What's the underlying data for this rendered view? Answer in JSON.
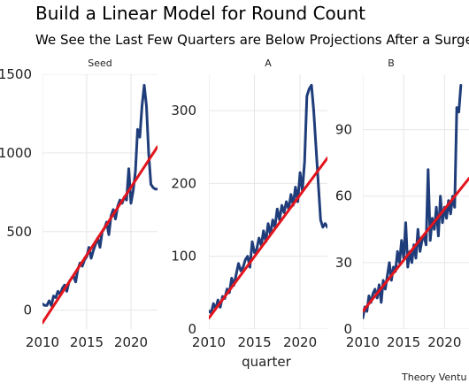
{
  "chart_data": {
    "type": "line",
    "title": "Build a Linear Model for Round Count",
    "subtitle": "We See the Last Few Quarters are Below Projections After a Surge",
    "xlabel": "quarter",
    "caption": "Theory Ventu",
    "colors": {
      "series": "#1f3d7a",
      "trend": "#e3141c",
      "grid": "#e6e6e6"
    },
    "grid": true,
    "facets": [
      {
        "label": "Seed",
        "xlim": [
          2010,
          2023
        ],
        "ylim": [
          -120,
          1500
        ],
        "xticks": [
          2010,
          2015,
          2020
        ],
        "yticks": [
          0,
          500,
          1000,
          1500
        ],
        "trend": {
          "x": [
            2010,
            2023
          ],
          "y": [
            -80,
            1040
          ]
        },
        "series": {
          "x": [
            2010,
            2010.25,
            2010.5,
            2010.75,
            2011,
            2011.25,
            2011.5,
            2011.75,
            2012,
            2012.25,
            2012.5,
            2012.75,
            2013,
            2013.25,
            2013.5,
            2013.75,
            2014,
            2014.25,
            2014.5,
            2014.75,
            2015,
            2015.25,
            2015.5,
            2015.75,
            2016,
            2016.25,
            2016.5,
            2016.75,
            2017,
            2017.25,
            2017.5,
            2017.75,
            2018,
            2018.25,
            2018.5,
            2018.75,
            2019,
            2019.25,
            2019.5,
            2019.75,
            2020,
            2020.25,
            2020.5,
            2020.75,
            2021,
            2021.25,
            2021.5,
            2021.75,
            2022,
            2022.25,
            2022.5,
            2022.75,
            2023
          ],
          "y": [
            40,
            30,
            30,
            60,
            30,
            90,
            80,
            120,
            100,
            140,
            160,
            120,
            180,
            200,
            220,
            180,
            260,
            300,
            280,
            320,
            340,
            400,
            330,
            380,
            420,
            460,
            400,
            500,
            520,
            560,
            480,
            600,
            640,
            580,
            660,
            700,
            680,
            720,
            700,
            900,
            680,
            760,
            880,
            1150,
            1100,
            1300,
            1430,
            1300,
            1000,
            800,
            780,
            770,
            770
          ]
        }
      },
      {
        "label": "A",
        "xlim": [
          2010,
          2023
        ],
        "ylim": [
          0,
          350
        ],
        "xticks": [
          2010,
          2015,
          2020
        ],
        "yticks": [
          0,
          100,
          200,
          300
        ],
        "trend": {
          "x": [
            2010,
            2023
          ],
          "y": [
            15,
            235
          ]
        },
        "series": {
          "x": [
            2010,
            2010.25,
            2010.5,
            2010.75,
            2011,
            2011.25,
            2011.5,
            2011.75,
            2012,
            2012.25,
            2012.5,
            2012.75,
            2013,
            2013.25,
            2013.5,
            2013.75,
            2014,
            2014.25,
            2014.5,
            2014.75,
            2015,
            2015.25,
            2015.5,
            2015.75,
            2016,
            2016.25,
            2016.5,
            2016.75,
            2017,
            2017.25,
            2017.5,
            2017.75,
            2018,
            2018.25,
            2018.5,
            2018.75,
            2019,
            2019.25,
            2019.5,
            2019.75,
            2020,
            2020.25,
            2020.5,
            2020.75,
            2021,
            2021.25,
            2021.5,
            2021.75,
            2022,
            2022.25,
            2022.5,
            2022.75,
            2023
          ],
          "y": [
            25,
            22,
            35,
            28,
            40,
            30,
            45,
            42,
            55,
            50,
            70,
            60,
            75,
            90,
            80,
            85,
            95,
            100,
            85,
            120,
            105,
            110,
            125,
            115,
            135,
            120,
            145,
            130,
            150,
            140,
            165,
            150,
            170,
            160,
            175,
            165,
            185,
            170,
            195,
            175,
            215,
            190,
            230,
            320,
            330,
            335,
            300,
            250,
            200,
            150,
            140,
            145,
            140
          ]
        }
      },
      {
        "label": "B",
        "xlim": [
          2010,
          2023
        ],
        "ylim": [
          0,
          115
        ],
        "xticks": [
          2010,
          2015,
          2020
        ],
        "yticks": [
          0,
          30,
          60,
          90
        ],
        "trend": {
          "x": [
            2010,
            2023
          ],
          "y": [
            8,
            68
          ]
        },
        "series": {
          "x": [
            2010,
            2010.25,
            2010.5,
            2010.75,
            2011,
            2011.25,
            2011.5,
            2011.75,
            2012,
            2012.25,
            2012.5,
            2012.75,
            2013,
            2013.25,
            2013.5,
            2013.75,
            2014,
            2014.25,
            2014.5,
            2014.75,
            2015,
            2015.25,
            2015.5,
            2015.75,
            2016,
            2016.25,
            2016.5,
            2016.75,
            2017,
            2017.25,
            2017.5,
            2017.75,
            2018,
            2018.25,
            2018.5,
            2018.75,
            2019,
            2019.25,
            2019.5,
            2019.75,
            2020,
            2020.25,
            2020.5,
            2020.75,
            2021,
            2021.25,
            2021.5,
            2021.75,
            2022
          ],
          "y": [
            5,
            10,
            8,
            15,
            12,
            16,
            18,
            14,
            20,
            12,
            22,
            18,
            24,
            30,
            22,
            28,
            26,
            35,
            30,
            40,
            32,
            48,
            28,
            35,
            30,
            38,
            32,
            45,
            35,
            40,
            42,
            38,
            72,
            40,
            50,
            45,
            55,
            42,
            60,
            48,
            55,
            50,
            58,
            52,
            60,
            55,
            100,
            98,
            110
          ]
        }
      }
    ]
  }
}
